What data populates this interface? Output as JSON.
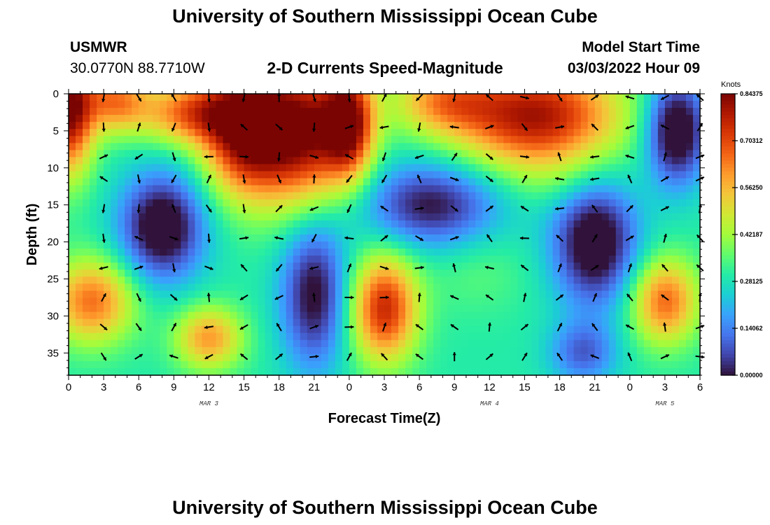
{
  "header": {
    "title": "University of Southern Mississippi Ocean Cube",
    "station": "USMWR",
    "coordinates": "30.0770N  88.7710W",
    "subtitle": "2-D Currents Speed-Magnitude",
    "model_start_label": "Model Start Time",
    "model_start_value": "03/03/2022 Hour 09"
  },
  "footer": {
    "title": "University of Southern Mississippi Ocean Cube"
  },
  "colorbar": {
    "unit": "Knots",
    "tick_labels": [
      "0.84375",
      "0.70312",
      "0.56250",
      "0.42187",
      "0.28125",
      "0.14062",
      "0.00000"
    ],
    "tick_values": [
      0.84375,
      0.703125,
      0.5625,
      0.421875,
      0.28125,
      0.140625,
      0.0
    ],
    "colormap": [
      "#30123b",
      "#4145ab",
      "#4675ed",
      "#39a2fc",
      "#1bcfd4",
      "#24eca6",
      "#61fc6c",
      "#a4fc3b",
      "#d1e834",
      "#f3c63a",
      "#fe9b2d",
      "#f36315",
      "#d93806",
      "#b11901",
      "#7a0402"
    ]
  },
  "chart_data": {
    "type": "heatmap",
    "title": "2-D Currents Speed-Magnitude",
    "xlabel": "Forecast Time(Z)",
    "ylabel": "Depth (ft)",
    "x_tick_labels": [
      "0",
      "3",
      "6",
      "9",
      "12",
      "15",
      "18",
      "21",
      "0",
      "3",
      "6",
      "9",
      "12",
      "15",
      "18",
      "21",
      "0",
      "3",
      "6"
    ],
    "x_hours_since_start": [
      0,
      3,
      6,
      9,
      12,
      15,
      18,
      21,
      24,
      27,
      30,
      33,
      36,
      39,
      42,
      45,
      48,
      51,
      54
    ],
    "date_labels": [
      {
        "text": "MAR 3",
        "hour": 12
      },
      {
        "text": "MAR 4",
        "hour": 36
      },
      {
        "text": "MAR 5",
        "hour": 51
      }
    ],
    "xlim": [
      0,
      54
    ],
    "y_tick_labels": [
      "0",
      "5",
      "10",
      "15",
      "20",
      "25",
      "30",
      "35"
    ],
    "y_ticks": [
      0,
      5,
      10,
      15,
      20,
      25,
      30,
      35
    ],
    "ylim": [
      0,
      38
    ],
    "y_inverted": true,
    "value_range": [
      0,
      0.84375
    ],
    "grid": false,
    "speed_field_blobs_knots": [
      {
        "x": 0,
        "y": 2,
        "peak": 0.84,
        "sx": 1.5,
        "sy": 6
      },
      {
        "x": 4,
        "y": 1,
        "peak": 0.62,
        "sx": 2,
        "sy": 3
      },
      {
        "x": 10.5,
        "y": 2.5,
        "peak": 0.65,
        "sx": 3,
        "sy": 3
      },
      {
        "x": 15,
        "y": 5,
        "peak": 0.8,
        "sx": 2.5,
        "sy": 6
      },
      {
        "x": 20,
        "y": 5,
        "peak": 0.82,
        "sx": 3,
        "sy": 7
      },
      {
        "x": 24,
        "y": 4,
        "peak": 0.75,
        "sx": 1.5,
        "sy": 5
      },
      {
        "x": 40,
        "y": 3,
        "peak": 0.8,
        "sx": 5,
        "sy": 5
      },
      {
        "x": 32,
        "y": 1,
        "peak": 0.55,
        "sx": 3,
        "sy": 3
      },
      {
        "x": 27,
        "y": 29,
        "peak": 0.75,
        "sx": 2,
        "sy": 5
      },
      {
        "x": 2,
        "y": 28,
        "peak": 0.65,
        "sx": 2.5,
        "sy": 4
      },
      {
        "x": 12,
        "y": 33,
        "peak": 0.6,
        "sx": 2,
        "sy": 3
      },
      {
        "x": 51,
        "y": 28,
        "peak": 0.66,
        "sx": 2,
        "sy": 4
      },
      {
        "x": 43,
        "y": 12,
        "peak": 0.35,
        "sx": 3,
        "sy": 3
      },
      {
        "x": 35,
        "y": 24,
        "peak": 0.35,
        "sx": 3,
        "sy": 4
      }
    ],
    "low_speed_regions_knots": [
      {
        "x": 8,
        "y": 18,
        "depth": 0.38,
        "sx": 2.5,
        "sy": 5
      },
      {
        "x": 21,
        "y": 27,
        "depth": 0.32,
        "sx": 2,
        "sy": 7
      },
      {
        "x": 31,
        "y": 15,
        "depth": 0.3,
        "sx": 4,
        "sy": 4
      },
      {
        "x": 45,
        "y": 20,
        "depth": 0.38,
        "sx": 2.5,
        "sy": 6
      },
      {
        "x": 52,
        "y": 5,
        "depth": 0.4,
        "sx": 1.8,
        "sy": 5
      },
      {
        "x": 44,
        "y": 35,
        "depth": 0.2,
        "sx": 2,
        "sy": 3
      }
    ],
    "vector_columns_hours": [
      3,
      6,
      9,
      12,
      15,
      18,
      21,
      24,
      27,
      30,
      33,
      36,
      39,
      42,
      45,
      48,
      51,
      54
    ],
    "vector_row_depths_ft": [
      0.5,
      4.5,
      8.5,
      11.5,
      15.5,
      19.5,
      23.5,
      27.5,
      31.5,
      35.5
    ]
  }
}
